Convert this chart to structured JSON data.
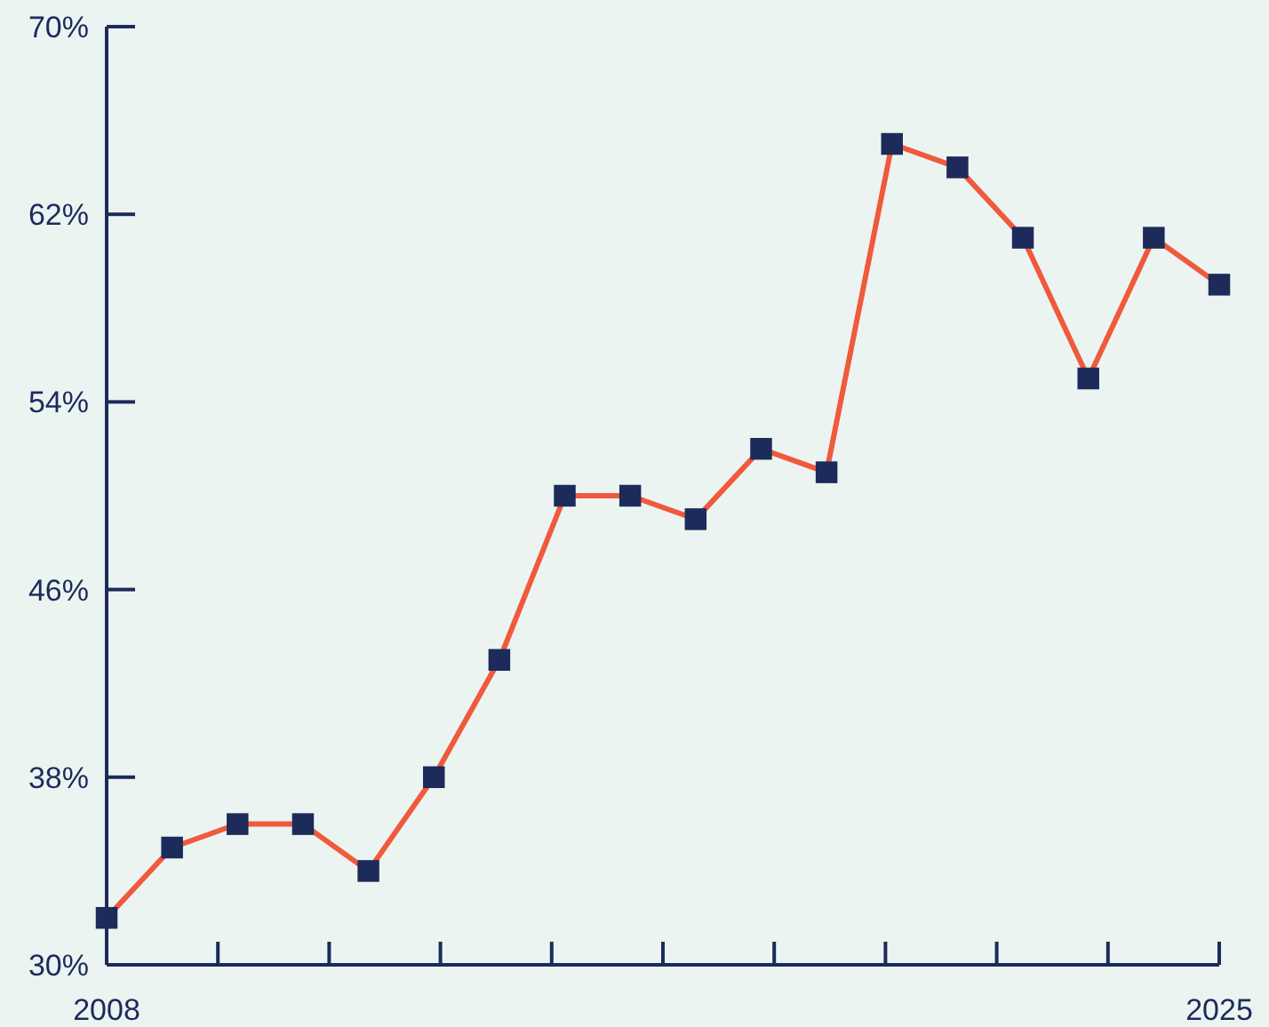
{
  "chart_data": {
    "type": "line",
    "x": [
      2008,
      2009,
      2010,
      2011,
      2012,
      2013,
      2014,
      2015,
      2016,
      2017,
      2018,
      2019,
      2020,
      2021,
      2022,
      2023,
      2024,
      2025
    ],
    "series": [
      {
        "color": "#f05a3c",
        "values": [
          32,
          35,
          36,
          36,
          34,
          38,
          43,
          50,
          50,
          49,
          52,
          51,
          65,
          64,
          61,
          55,
          61,
          59
        ]
      }
    ],
    "xlim": [
      2008,
      2025
    ],
    "xticks": [
      2008,
      {
        "value": 2009.7,
        "label": null
      },
      {
        "value": 2011.4,
        "label": null
      },
      {
        "value": 2013.1,
        "label": null
      },
      {
        "value": 2014.8,
        "label": null
      },
      {
        "value": 2016.5,
        "label": null
      },
      {
        "value": 2018.2,
        "label": null
      },
      {
        "value": 2019.9,
        "label": null
      },
      {
        "value": 2021.6,
        "label": null
      },
      {
        "value": 2023.3,
        "label": null
      },
      2025
    ],
    "ylim": [
      30,
      70
    ],
    "yticks": [
      {
        "value": 30,
        "label": "30%"
      },
      {
        "value": 38,
        "label": "38%"
      },
      {
        "value": 46,
        "label": "46%"
      },
      {
        "value": 54,
        "label": "54%"
      },
      {
        "value": 62,
        "label": "62%"
      },
      {
        "value": 70,
        "label": "70%"
      }
    ],
    "marker": "square",
    "line_style": "solid",
    "grid": false
  }
}
